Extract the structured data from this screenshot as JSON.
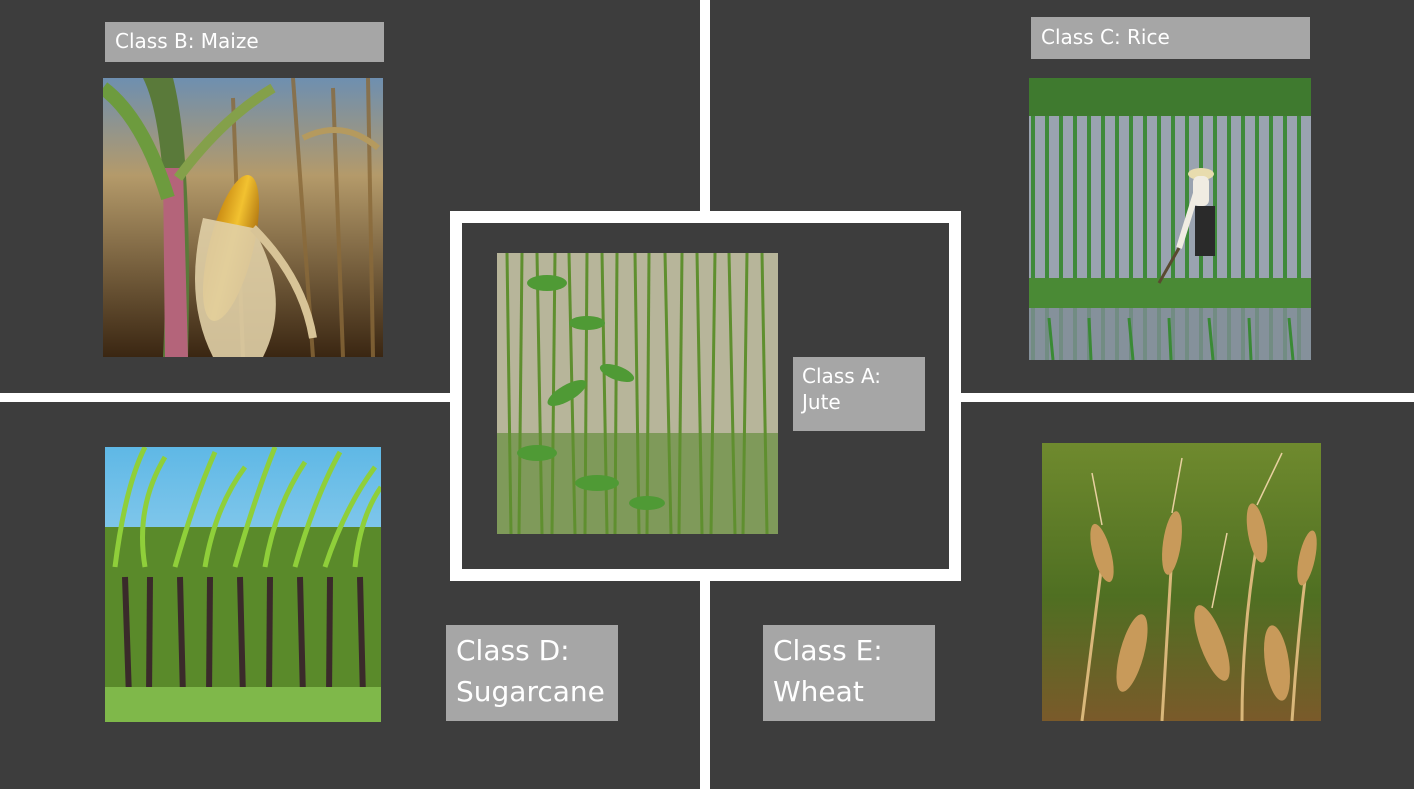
{
  "classes": {
    "a": {
      "label": "Class A:\nJute",
      "image": "jute-field-photo"
    },
    "b": {
      "label": "Class B: Maize",
      "image": "maize-cob-photo"
    },
    "c": {
      "label": "Class C: Rice",
      "image": "rice-paddy-photo"
    },
    "d": {
      "label": "Class D:\nSugarcane",
      "image": "sugarcane-field-photo"
    },
    "e": {
      "label": "Class E:\nWheat",
      "image": "wheat-ears-photo"
    }
  },
  "colors": {
    "background": "#3d3d3d",
    "divider": "#ffffff",
    "label_bg": "#a6a6a6",
    "label_text": "#ffffff"
  }
}
